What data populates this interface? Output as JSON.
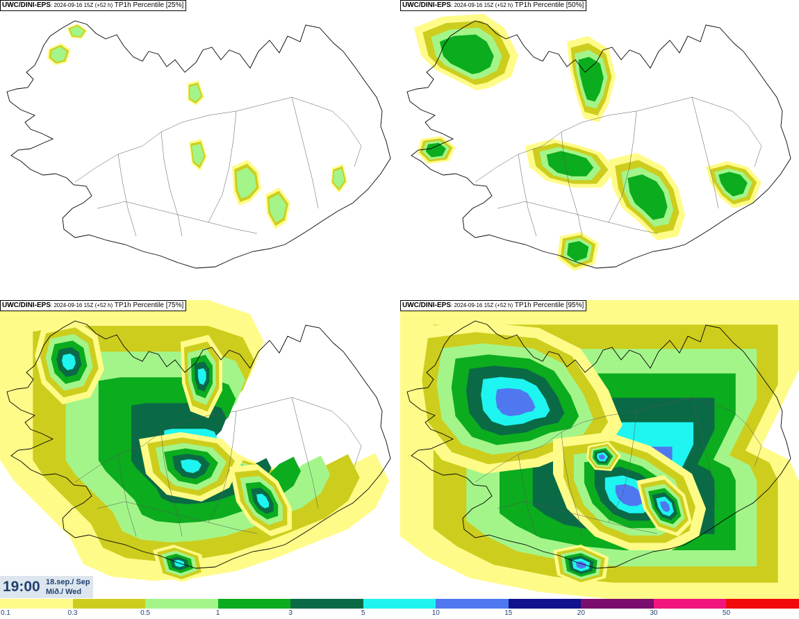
{
  "panels": [
    {
      "source": "UWC/DINI-EPS",
      "run": ": 2024-09-16 15Z (+52 h)",
      "title": " TP1h Percentile [25%]",
      "level": 1
    },
    {
      "source": "UWC/DINI-EPS",
      "run": ": 2024-09-16 15Z (+52 h)",
      "title": " TP1h Percentile [50%]",
      "level": 2
    },
    {
      "source": "UWC/DINI-EPS",
      "run": ": 2024-09-16 15Z (+52 h)",
      "title": " TP1h Percentile [75%]",
      "level": 3
    },
    {
      "source": "UWC/DINI-EPS",
      "run": ": 2024-09-16 15Z (+52 h)",
      "title": " TP1h Percentile [95%]",
      "level": 4
    }
  ],
  "valid_time": {
    "time": "19:00",
    "date_line1": "18.sep./ Sep",
    "date_line2": "Mið./ Wed"
  },
  "legend": {
    "labels": [
      "0.1",
      "0.3",
      "0.5",
      "1",
      "3",
      "5",
      "10",
      "15",
      "20",
      "30",
      "50"
    ],
    "colors": [
      "#fffb88",
      "#cdcd1e",
      "#a3f58a",
      "#0bac1e",
      "#0a6a46",
      "#1ef5f0",
      "#4f78f0",
      "#11128e",
      "#7a0e6e",
      "#f0167d",
      "#f00a0a"
    ]
  },
  "colors": {
    "coast": "#000000",
    "time_bg": "#dde6ee",
    "time_text": "#1f3f6e"
  }
}
